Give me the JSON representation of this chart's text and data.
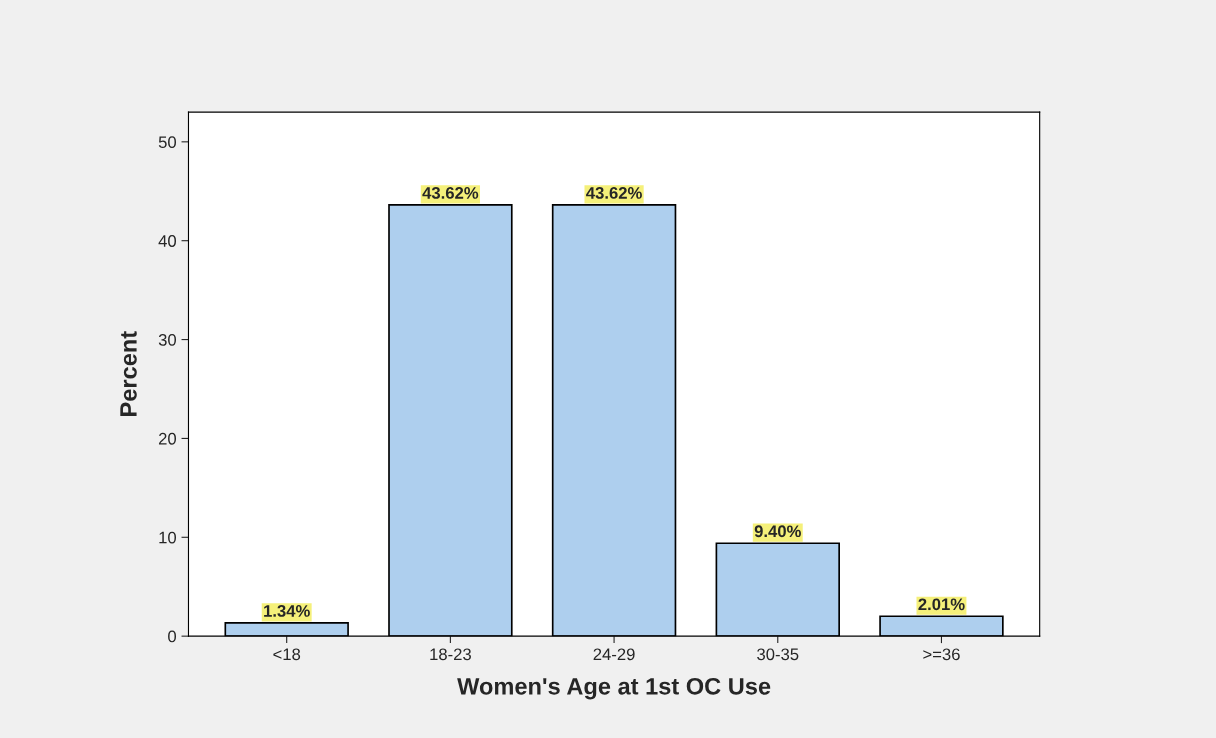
{
  "chart_data": {
    "type": "bar",
    "xlabel": "Women's Age at 1st OC Use",
    "ylabel": "Percent",
    "categories": [
      "<18",
      "18-23",
      "24-29",
      "30-35",
      ">=36"
    ],
    "values": [
      1.34,
      43.62,
      43.62,
      9.4,
      2.01
    ],
    "value_labels": [
      "1.34%",
      "43.62%",
      "43.62%",
      "9.40%",
      "2.01%"
    ],
    "color": "#aecfee",
    "ylim": [
      0,
      53
    ],
    "yticks": [
      0,
      10,
      20,
      30,
      40,
      50
    ],
    "grid": false
  }
}
